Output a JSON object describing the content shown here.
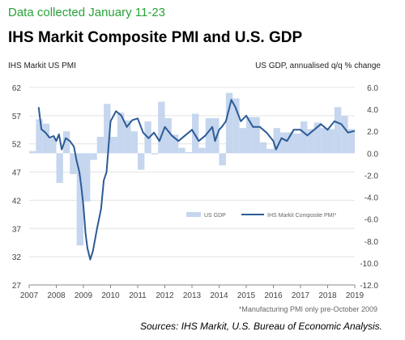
{
  "header": {
    "subtitle": "Data collected January 11-23",
    "title": "IHS Markit Composite PMI and U.S. GDP"
  },
  "footnote": "*Manufacturing PMI only pre-October 2009",
  "source": "Sources:  IHS Markit, U.S. Bureau of Economic Analysis.",
  "colors": {
    "pmi_line": "#2c5b96",
    "gdp_bar": "#c5d6ee",
    "subtitle": "#2aa33a"
  },
  "chart_data": {
    "type": "bar",
    "ylabel": "IHS Markit US PMI",
    "y2label": "US GDP, annualised q/q % change",
    "ylim": [
      27,
      62
    ],
    "y2lim": [
      -12,
      6
    ],
    "left_ticks": [
      "27",
      "32",
      "37",
      "42",
      "47",
      "52",
      "57",
      "62"
    ],
    "right_ticks": [
      "-12.0",
      "-10.0",
      "-8.0",
      "-6.0",
      "-4.0",
      "-2.0",
      "0.0",
      "2.0",
      "4.0",
      "6.0"
    ],
    "x_ticks": [
      "2007",
      "2008",
      "2009",
      "2010",
      "2011",
      "2012",
      "2013",
      "2014",
      "2015",
      "2016",
      "2017",
      "2018",
      "2019"
    ],
    "grid": "horizontal",
    "legend_position": "bottom-right",
    "series": [
      {
        "name": "US GDP",
        "type": "bar",
        "axis": "right",
        "x": [
          2007.0,
          2007.25,
          2007.5,
          2007.75,
          2008.0,
          2008.25,
          2008.5,
          2008.75,
          2009.0,
          2009.25,
          2009.5,
          2009.75,
          2010.0,
          2010.25,
          2010.5,
          2010.75,
          2011.0,
          2011.25,
          2011.5,
          2011.75,
          2012.0,
          2012.25,
          2012.5,
          2012.75,
          2013.0,
          2013.25,
          2013.5,
          2013.75,
          2014.0,
          2014.25,
          2014.5,
          2014.75,
          2015.0,
          2015.25,
          2015.5,
          2015.75,
          2016.0,
          2016.25,
          2016.5,
          2016.75,
          2017.0,
          2017.25,
          2017.5,
          2017.75,
          2018.0,
          2018.25,
          2018.5,
          2018.75
        ],
        "values": [
          0.2,
          3.1,
          2.7,
          1.4,
          -2.7,
          2.0,
          -1.9,
          -8.4,
          -4.4,
          -0.6,
          1.5,
          4.5,
          1.5,
          3.7,
          3.0,
          2.0,
          -1.5,
          2.9,
          -0.1,
          4.7,
          3.2,
          1.7,
          0.5,
          0.1,
          3.6,
          0.5,
          3.2,
          3.2,
          -1.1,
          5.5,
          5.0,
          2.3,
          3.3,
          3.3,
          1.0,
          0.4,
          2.3,
          1.9,
          1.9,
          1.8,
          2.9,
          2.2,
          2.8,
          2.3,
          2.2,
          4.2,
          3.4,
          2.2
        ]
      },
      {
        "name": "IHS Markit Composite PMI*",
        "type": "line",
        "axis": "left",
        "x": [
          2007.35,
          2007.45,
          2007.6,
          2007.75,
          2007.9,
          2008.0,
          2008.1,
          2008.2,
          2008.35,
          2008.5,
          2008.65,
          2008.75,
          2008.85,
          2008.92,
          2009.0,
          2009.08,
          2009.15,
          2009.25,
          2009.35,
          2009.5,
          2009.65,
          2009.75,
          2009.85,
          2010.0,
          2010.2,
          2010.4,
          2010.6,
          2010.8,
          2011.0,
          2011.2,
          2011.4,
          2011.6,
          2011.8,
          2012.0,
          2012.25,
          2012.5,
          2012.75,
          2013.0,
          2013.25,
          2013.5,
          2013.75,
          2013.85,
          2014.0,
          2014.1,
          2014.25,
          2014.45,
          2014.6,
          2014.8,
          2015.0,
          2015.25,
          2015.5,
          2015.75,
          2016.0,
          2016.1,
          2016.3,
          2016.5,
          2016.75,
          2017.0,
          2017.25,
          2017.5,
          2017.75,
          2018.0,
          2018.25,
          2018.5,
          2018.75,
          2019.0
        ],
        "values": [
          58.5,
          54.6,
          54.0,
          53.1,
          53.4,
          52.5,
          53.7,
          51.0,
          53.0,
          52.5,
          51.5,
          49.0,
          47.0,
          44.5,
          41.0,
          36.0,
          33.5,
          31.5,
          33.0,
          37.0,
          40.5,
          45.5,
          47.0,
          56.0,
          57.8,
          57.0,
          55.0,
          56.2,
          56.5,
          54.0,
          53.0,
          54.0,
          52.5,
          55.0,
          53.5,
          52.5,
          53.5,
          54.5,
          52.5,
          53.5,
          55.0,
          52.5,
          54.5,
          55.0,
          56.0,
          59.8,
          58.5,
          56.0,
          57.0,
          55.0,
          55.0,
          54.0,
          52.5,
          51.0,
          53.0,
          52.5,
          54.5,
          54.5,
          53.5,
          54.5,
          55.5,
          54.5,
          56.0,
          55.5,
          54.0,
          54.3
        ]
      }
    ]
  }
}
